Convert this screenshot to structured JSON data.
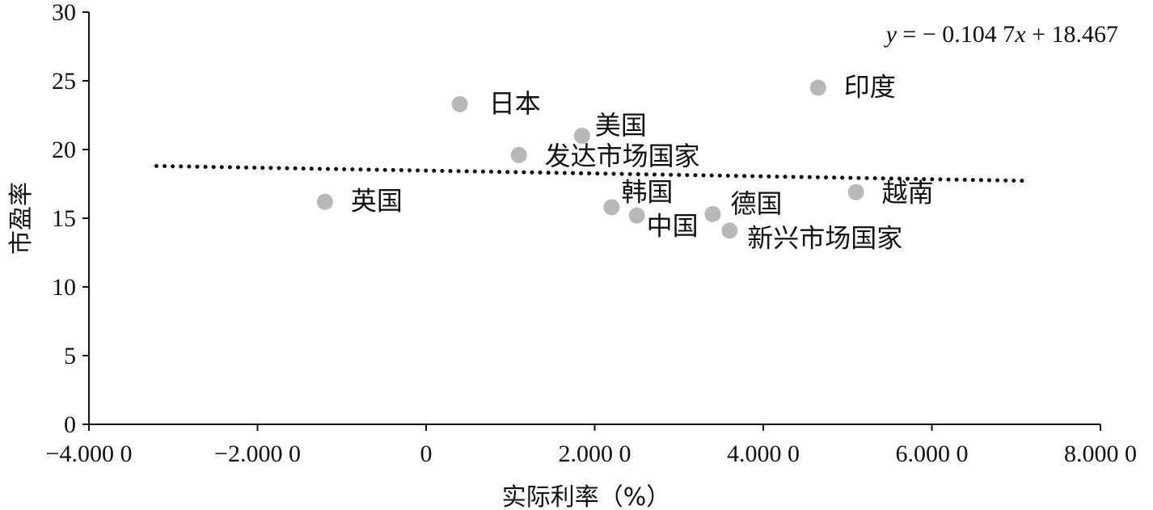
{
  "chart_data": {
    "type": "scatter",
    "xlabel": "实际利率（%）",
    "ylabel": "市盈率",
    "xlim": [
      -4,
      8
    ],
    "ylim": [
      0,
      30
    ],
    "x_ticks": [
      -4,
      -2,
      0,
      2,
      4,
      6,
      8
    ],
    "x_tick_labels": [
      "−4.000 0",
      "−2.000 0",
      "0",
      "2.000 0",
      "4.000 0",
      "6.000 0",
      "8.000 0"
    ],
    "y_ticks": [
      0,
      5,
      10,
      15,
      20,
      25,
      30
    ],
    "y_tick_labels": [
      "0",
      "5",
      "10",
      "15",
      "20",
      "25",
      "30"
    ],
    "grid": false,
    "points": [
      {
        "label": "英国",
        "x": -1.2,
        "y": 16.2
      },
      {
        "label": "日本",
        "x": 0.4,
        "y": 23.3
      },
      {
        "label": "发达市场国家",
        "x": 1.1,
        "y": 19.6
      },
      {
        "label": "美国",
        "x": 1.85,
        "y": 21.0
      },
      {
        "label": "韩国",
        "x": 2.2,
        "y": 15.8
      },
      {
        "label": "中国",
        "x": 2.5,
        "y": 15.2
      },
      {
        "label": "德国",
        "x": 3.4,
        "y": 15.3
      },
      {
        "label": "新兴市场国家",
        "x": 3.6,
        "y": 14.1
      },
      {
        "label": "印度",
        "x": 4.65,
        "y": 24.5
      },
      {
        "label": "越南",
        "x": 5.1,
        "y": 16.9
      }
    ],
    "trendline": {
      "slope": -0.1047,
      "intercept": 18.467,
      "x_range": [
        -3.2,
        7.1
      ],
      "style": "dotted",
      "equation_text": "y = − 0.104 7x + 18.467"
    },
    "colors": {
      "point": "#b8b8b8",
      "axis": "#111111",
      "trendline": "#111111"
    }
  }
}
